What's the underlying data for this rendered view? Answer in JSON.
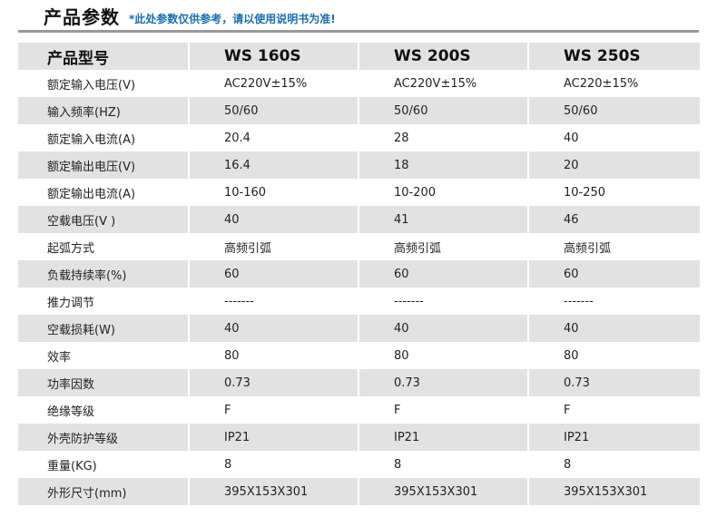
{
  "header": {
    "title": "产品参数",
    "note": "*此处参数仅供参考，请以使用说明书为准!"
  },
  "table": {
    "header": [
      "产品型号",
      "WS 160S",
      "WS 200S",
      "WS 250S"
    ],
    "rows": [
      [
        "额定输入电压(V)",
        "AC220V±15%",
        "AC220V±15%",
        "AC220±15%"
      ],
      [
        "输入频率(HZ)",
        "50/60",
        "50/60",
        "50/60"
      ],
      [
        "额定输入电流(A)",
        "20.4",
        "28",
        "40"
      ],
      [
        "额定输出电压(V)",
        "16.4",
        "18",
        "20"
      ],
      [
        "额定输出电流(A)",
        "10-160",
        "10-200",
        "10-250"
      ],
      [
        "空载电压(V )",
        "40",
        "41",
        "46"
      ],
      [
        "起弧方式",
        "高频引弧",
        "高频引弧",
        "高频引弧"
      ],
      [
        "负载持续率(%)",
        "60",
        "60",
        "60"
      ],
      [
        "推力调节",
        "-------",
        "-------",
        "-------"
      ],
      [
        "空载损耗(W)",
        "40",
        "40",
        "40"
      ],
      [
        "效率",
        "80",
        "80",
        "80"
      ],
      [
        "功率因数",
        "0.73",
        "0.73",
        "0.73"
      ],
      [
        "绝缘等级",
        "F",
        "F",
        "F"
      ],
      [
        "外壳防护等级",
        "IP21",
        "IP21",
        "IP21"
      ],
      [
        "重量(KG)",
        "8",
        "8",
        "8"
      ],
      [
        "外形尺寸(mm)",
        "395X153X301",
        "395X153X301",
        "395X153X301"
      ]
    ]
  }
}
